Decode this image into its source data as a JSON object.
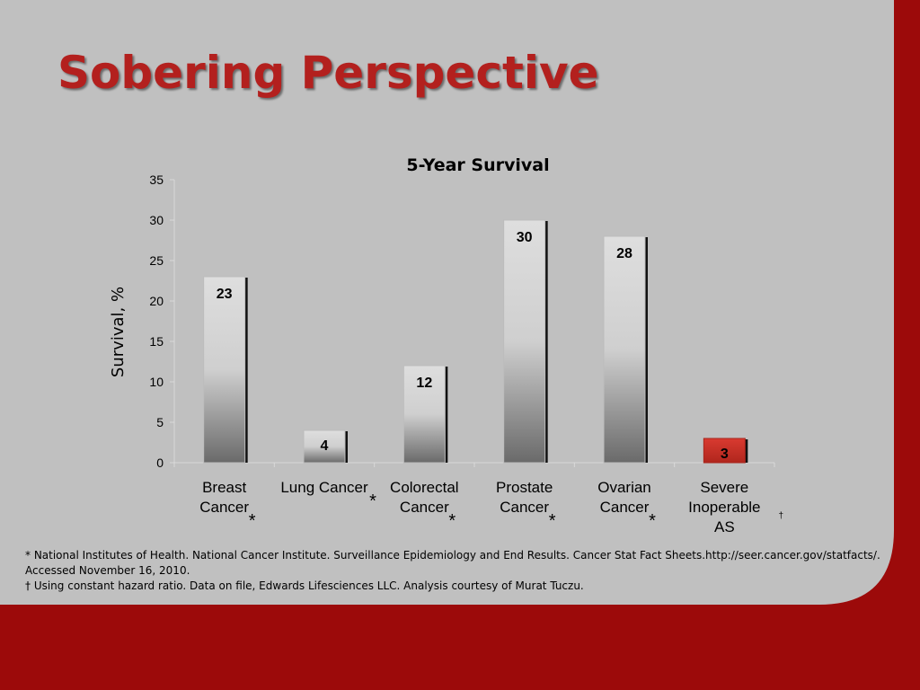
{
  "slide": {
    "title": "Sobering Perspective",
    "background_color": "#c0c0c0",
    "frame_color": "#9c0a0a",
    "title_color": "#b3201e"
  },
  "chart_data": {
    "type": "bar",
    "title": "5-Year Survival",
    "ylabel": "Survival, %",
    "xlabel": "",
    "ylim": [
      0,
      35
    ],
    "yticks": [
      0,
      5,
      10,
      15,
      20,
      25,
      30,
      35
    ],
    "grid": false,
    "categories": [
      [
        "Breast",
        "Cancer"
      ],
      [
        "Lung Cancer"
      ],
      [
        "Colorectal",
        "Cancer"
      ],
      [
        "Prostate",
        "Cancer"
      ],
      [
        "Ovarian",
        "Cancer"
      ],
      [
        "Severe",
        "Inoperable",
        "AS"
      ]
    ],
    "values": [
      23,
      4,
      12,
      30,
      28,
      3
    ],
    "markers": [
      "*",
      "*",
      "*",
      "*",
      "*",
      "†"
    ],
    "bar_colors": [
      "gray-gradient",
      "gray-gradient",
      "gray-gradient",
      "gray-gradient",
      "gray-gradient",
      "#d62b22"
    ]
  },
  "footnotes": [
    "* National Institutes of Health. National Cancer Institute. Surveillance Epidemiology and End Results. Cancer Stat Fact Sheets.http://seer.cancer.gov/statfacts/.",
    "Accessed November 16, 2010.",
    "† Using constant hazard ratio. Data on file, Edwards Lifesciences LLC. Analysis courtesy of Murat Tuczu."
  ]
}
